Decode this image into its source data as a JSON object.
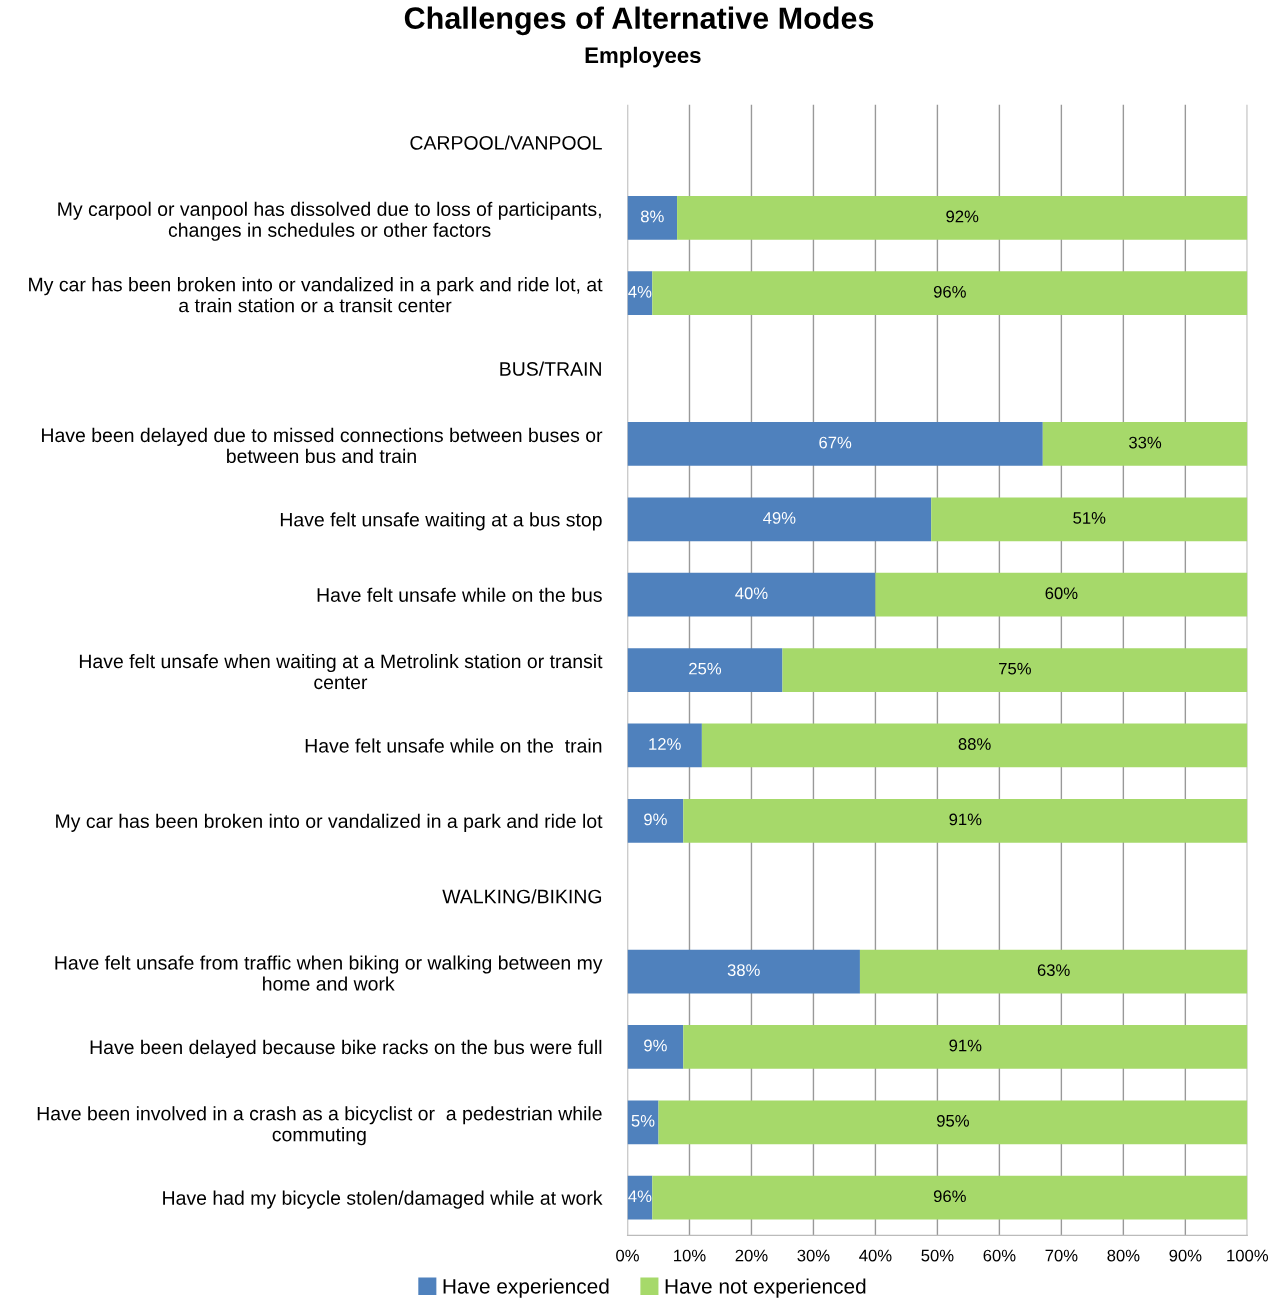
{
  "chart_data": {
    "type": "bar",
    "orientation": "horizontal",
    "stacked": true,
    "title": "Challenges of Alternative Modes",
    "subtitle": "Employees",
    "categories": [
      "CARPOOL/VANPOOL",
      "My carpool or vanpool has dissolved due to loss of participants,\nchanges in schedules or other factors",
      "My car has been broken into or vandalized in a park and ride lot, at\na train station or a transit center",
      "BUS/TRAIN",
      "Have been delayed due to missed connections between buses or\nbetween bus and train",
      "Have felt unsafe waiting at a bus stop",
      "Have felt unsafe while on the bus",
      "Have felt unsafe when waiting at a Metrolink station or transit\ncenter",
      "Have felt unsafe while on the  train",
      "My car has been broken into or vandalized in a park and ride lot",
      "WALKING/BIKING",
      "Have felt unsafe from traffic when biking or walking between my\nhome and work",
      "Have been delayed because bike racks on the bus were full",
      "Have been involved in a crash as a bicyclist or  a pedestrian while\ncommuting",
      "Have had my bicycle stolen/damaged while at work"
    ],
    "series": [
      {
        "name": "Have experienced",
        "color": "#4f81bd",
        "values": [
          null,
          8,
          4,
          null,
          67,
          49,
          40,
          25,
          12,
          9,
          null,
          37.5,
          9,
          5,
          4
        ],
        "value_labels": [
          null,
          "8%",
          "4%",
          null,
          "67%",
          "49%",
          "40%",
          "25%",
          "12%",
          "9%",
          null,
          "38%",
          "9%",
          "5%",
          "4%"
        ]
      },
      {
        "name": "Have not experienced",
        "color": "#a6d96a",
        "values": [
          null,
          92,
          96,
          null,
          33,
          51,
          60,
          75,
          88,
          91,
          null,
          62.5,
          91,
          95,
          96
        ],
        "value_labels": [
          null,
          "92%",
          "96%",
          null,
          "33%",
          "51%",
          "60%",
          "75%",
          "88%",
          "91%",
          null,
          "63%",
          "91%",
          "95%",
          "96%"
        ]
      }
    ],
    "xlim": [
      0,
      100
    ],
    "xticks": [
      {
        "value": 0,
        "label": "0%"
      },
      {
        "value": 10,
        "label": "10%"
      },
      {
        "value": 20,
        "label": "20%"
      },
      {
        "value": 30,
        "label": "30%"
      },
      {
        "value": 40,
        "label": "40%"
      },
      {
        "value": 50,
        "label": "50%"
      },
      {
        "value": 60,
        "label": "60%"
      },
      {
        "value": 70,
        "label": "70%"
      },
      {
        "value": 80,
        "label": "80%"
      },
      {
        "value": 90,
        "label": "90%"
      },
      {
        "value": 100,
        "label": "100%"
      }
    ],
    "grid": "x",
    "legend": "bottom"
  }
}
